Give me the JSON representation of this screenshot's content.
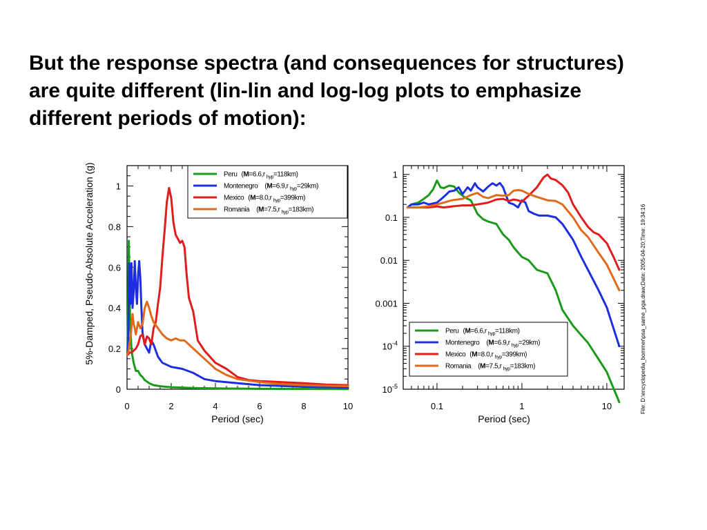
{
  "slide": {
    "title_lines": [
      "But the response spectra (and consequences for structures)",
      "are quite different (lin-lin and log-log plots to emphasize",
      "different periods of motion):"
    ]
  },
  "footnote": "File: D:\\encyclopedia_bommer\\psa_same_pga.draw;Date: 2005-04-20;Time: 19:34:16",
  "colors": {
    "peru": "#1a9a1a",
    "montenegro": "#1c2ee0",
    "mexico": "#e01c1c",
    "romania": "#e06a1a"
  },
  "chart_data": [
    {
      "type": "line",
      "scale": "linear",
      "xlabel": "Period    (sec)",
      "ylabel": "5%-Damped,  Pseudo-Absolute  Acceleration  (g)",
      "xlim": [
        0,
        10
      ],
      "ylim": [
        0,
        1.1
      ],
      "x_ticks": [
        0,
        2,
        4,
        6,
        8,
        10
      ],
      "x_tick_labels": [
        "0",
        "2",
        "4",
        "6",
        "8",
        "10"
      ],
      "y_ticks": [
        0,
        0.2,
        0.4,
        0.6,
        0.8,
        1
      ],
      "y_tick_labels": [
        "0",
        "0.2",
        "0.4",
        "0.6",
        "0.8",
        "1"
      ],
      "legend_position": "top-right",
      "series": [
        {
          "key": "peru",
          "name": "Peru",
          "params": "(M=6.6,r hyp=118km)",
          "legend": {
            "name": "Peru",
            "pre": "(",
            "bold": "M",
            "mid": "=6.6,r",
            "sub": "hyp",
            "post": "=118km)"
          },
          "x": [
            0.02,
            0.05,
            0.08,
            0.1,
            0.12,
            0.15,
            0.18,
            0.2,
            0.22,
            0.25,
            0.3,
            0.35,
            0.4,
            0.5,
            0.6,
            0.7,
            0.8,
            1.0,
            1.2,
            1.5,
            2.0,
            3.0,
            4.0,
            6.0,
            8.0,
            10.0
          ],
          "values": [
            0.18,
            0.42,
            0.73,
            0.6,
            0.45,
            0.3,
            0.24,
            0.2,
            0.18,
            0.16,
            0.13,
            0.11,
            0.09,
            0.09,
            0.07,
            0.06,
            0.045,
            0.03,
            0.02,
            0.015,
            0.01,
            0.006,
            0.004,
            0.002,
            0.0015,
            0.001
          ]
        },
        {
          "key": "montenegro",
          "name": "Montenegro",
          "params": "(M=6.9,r hyp=29km)",
          "legend": {
            "name": "Montenegro",
            "pre": "(",
            "bold": "M",
            "mid": "=6.9,r",
            "sub": "hyp",
            "post": "=29km)"
          },
          "x": [
            0.02,
            0.05,
            0.08,
            0.1,
            0.12,
            0.15,
            0.18,
            0.2,
            0.25,
            0.3,
            0.35,
            0.4,
            0.45,
            0.5,
            0.55,
            0.6,
            0.65,
            0.7,
            0.8,
            0.9,
            1.0,
            1.1,
            1.2,
            1.4,
            1.6,
            1.8,
            2.0,
            2.5,
            3.0,
            3.5,
            4.0,
            5.0,
            6.0,
            8.0,
            10.0
          ],
          "values": [
            0.17,
            0.22,
            0.45,
            0.62,
            0.5,
            0.42,
            0.55,
            0.62,
            0.4,
            0.48,
            0.63,
            0.5,
            0.42,
            0.56,
            0.63,
            0.55,
            0.4,
            0.28,
            0.22,
            0.2,
            0.18,
            0.24,
            0.22,
            0.16,
            0.13,
            0.12,
            0.11,
            0.1,
            0.08,
            0.05,
            0.04,
            0.03,
            0.02,
            0.012,
            0.008
          ]
        },
        {
          "key": "mexico",
          "name": "Mexico",
          "params": "(M=8.0,r hyp=399km)",
          "legend": {
            "name": "Mexico",
            "pre": "(",
            "bold": "M",
            "mid": "=8.0,r",
            "sub": "hyp",
            "post": "=399km)"
          },
          "x": [
            0.02,
            0.05,
            0.1,
            0.2,
            0.3,
            0.4,
            0.5,
            0.6,
            0.7,
            0.8,
            0.9,
            1.0,
            1.1,
            1.2,
            1.3,
            1.4,
            1.5,
            1.6,
            1.7,
            1.8,
            1.9,
            2.0,
            2.1,
            2.2,
            2.3,
            2.4,
            2.5,
            2.6,
            2.7,
            2.8,
            3.0,
            3.2,
            3.5,
            4.0,
            4.5,
            5.0,
            5.5,
            6.0,
            7.0,
            8.0,
            9.0,
            10.0
          ],
          "values": [
            0.17,
            0.17,
            0.18,
            0.18,
            0.19,
            0.2,
            0.22,
            0.26,
            0.27,
            0.22,
            0.26,
            0.25,
            0.22,
            0.3,
            0.33,
            0.42,
            0.5,
            0.65,
            0.78,
            0.92,
            0.99,
            0.94,
            0.82,
            0.76,
            0.74,
            0.72,
            0.73,
            0.7,
            0.56,
            0.45,
            0.38,
            0.24,
            0.19,
            0.13,
            0.1,
            0.06,
            0.045,
            0.04,
            0.035,
            0.03,
            0.023,
            0.02
          ]
        },
        {
          "key": "romania",
          "name": "Romania",
          "params": "(M=7.5,r hyp=183km)",
          "legend": {
            "name": "Romania",
            "pre": "(",
            "bold": "M",
            "mid": "=7.5,r",
            "sub": "hyp",
            "post": "=183km)"
          },
          "x": [
            0.02,
            0.05,
            0.08,
            0.1,
            0.15,
            0.2,
            0.25,
            0.3,
            0.35,
            0.4,
            0.5,
            0.6,
            0.7,
            0.8,
            0.9,
            1.0,
            1.1,
            1.2,
            1.4,
            1.6,
            1.8,
            2.0,
            2.2,
            2.4,
            2.6,
            2.8,
            3.0,
            3.5,
            4.0,
            4.5,
            5.0,
            6.0,
            7.0,
            8.0,
            9.0,
            10.0
          ],
          "values": [
            0.17,
            0.18,
            0.2,
            0.22,
            0.25,
            0.3,
            0.37,
            0.32,
            0.3,
            0.27,
            0.33,
            0.3,
            0.32,
            0.4,
            0.43,
            0.4,
            0.36,
            0.33,
            0.3,
            0.27,
            0.25,
            0.24,
            0.25,
            0.24,
            0.24,
            0.22,
            0.2,
            0.15,
            0.1,
            0.07,
            0.05,
            0.035,
            0.025,
            0.02,
            0.017,
            0.015
          ]
        }
      ]
    },
    {
      "type": "line",
      "scale": "log-log",
      "xlabel": "Period    (sec)",
      "xlim": [
        0.04,
        16
      ],
      "ylim": [
        1e-05,
        1.6
      ],
      "x_ticks": [
        0.1,
        1,
        10
      ],
      "x_tick_labels": [
        "0.1",
        "1",
        "10"
      ],
      "y_ticks": [
        1e-05,
        0.0001,
        0.001,
        0.01,
        0.1,
        1
      ],
      "y_tick_labels": [
        {
          "base": "10",
          "exp": "-5"
        },
        {
          "base": "10",
          "exp": "-4"
        },
        {
          "text": "0.001"
        },
        {
          "text": "0.01"
        },
        {
          "text": "0.1"
        },
        {
          "text": "1"
        }
      ],
      "legend_position": "bottom-center",
      "series": [
        {
          "key": "peru",
          "name": "Peru",
          "params": "(M=6.6,r hyp=118km)",
          "legend": {
            "name": "Peru",
            "pre": "(",
            "bold": "M",
            "mid": "=6.6,r",
            "sub": "hyp",
            "post": "=118km)"
          },
          "x": [
            0.045,
            0.05,
            0.06,
            0.07,
            0.08,
            0.09,
            0.1,
            0.11,
            0.12,
            0.14,
            0.16,
            0.18,
            0.2,
            0.22,
            0.25,
            0.3,
            0.35,
            0.4,
            0.5,
            0.6,
            0.7,
            0.8,
            1.0,
            1.2,
            1.5,
            2.0,
            2.5,
            3.0,
            4.0,
            5.0,
            6.0,
            8.0,
            10.0,
            14.0
          ],
          "values": [
            0.17,
            0.2,
            0.22,
            0.27,
            0.33,
            0.45,
            0.72,
            0.5,
            0.48,
            0.55,
            0.52,
            0.38,
            0.32,
            0.28,
            0.25,
            0.12,
            0.09,
            0.08,
            0.07,
            0.04,
            0.03,
            0.02,
            0.012,
            0.01,
            0.006,
            0.005,
            0.002,
            0.0007,
            0.0003,
            0.00018,
            0.00012,
            5e-05,
            2.5e-05,
            5e-06
          ]
        },
        {
          "key": "montenegro",
          "name": "Montenegro",
          "params": "(M=6.9,r hyp=29km)",
          "legend": {
            "name": "Montenegro",
            "pre": "(",
            "bold": "M",
            "mid": "=6.9,r",
            "sub": "hyp",
            "post": "=29km)"
          },
          "x": [
            0.045,
            0.05,
            0.06,
            0.07,
            0.08,
            0.1,
            0.12,
            0.14,
            0.16,
            0.18,
            0.2,
            0.23,
            0.25,
            0.28,
            0.3,
            0.35,
            0.4,
            0.45,
            0.5,
            0.55,
            0.6,
            0.7,
            0.8,
            0.9,
            1.0,
            1.1,
            1.2,
            1.4,
            1.6,
            2.0,
            2.5,
            3.0,
            4.0,
            5.0,
            6.0,
            8.0,
            10.0,
            14.0
          ],
          "values": [
            0.17,
            0.2,
            0.2,
            0.22,
            0.2,
            0.22,
            0.3,
            0.4,
            0.42,
            0.5,
            0.35,
            0.5,
            0.42,
            0.62,
            0.5,
            0.4,
            0.52,
            0.62,
            0.55,
            0.63,
            0.5,
            0.22,
            0.2,
            0.17,
            0.25,
            0.22,
            0.14,
            0.12,
            0.11,
            0.11,
            0.1,
            0.07,
            0.03,
            0.012,
            0.006,
            0.002,
            0.0008,
            0.0001
          ]
        },
        {
          "key": "mexico",
          "name": "Mexico",
          "params": "(M=8.0,r hyp=399km)",
          "legend": {
            "name": "Mexico",
            "pre": "(",
            "bold": "M",
            "mid": "=8.0,r",
            "sub": "hyp",
            "post": "=399km)"
          },
          "x": [
            0.045,
            0.06,
            0.08,
            0.1,
            0.12,
            0.15,
            0.2,
            0.25,
            0.3,
            0.35,
            0.4,
            0.5,
            0.6,
            0.7,
            0.8,
            0.9,
            1.0,
            1.2,
            1.5,
            1.8,
            2.0,
            2.2,
            2.5,
            3.0,
            3.5,
            4.0,
            5.0,
            6.0,
            7.0,
            8.0,
            10.0,
            12.0,
            14.0
          ],
          "values": [
            0.17,
            0.17,
            0.17,
            0.18,
            0.17,
            0.18,
            0.19,
            0.19,
            0.2,
            0.21,
            0.22,
            0.26,
            0.27,
            0.24,
            0.26,
            0.25,
            0.23,
            0.32,
            0.5,
            0.85,
            0.99,
            0.8,
            0.74,
            0.56,
            0.38,
            0.2,
            0.1,
            0.06,
            0.045,
            0.04,
            0.025,
            0.012,
            0.006
          ]
        },
        {
          "key": "romania",
          "name": "Romania",
          "params": "(M=7.5,r hyp=183km)",
          "legend": {
            "name": "Romania",
            "pre": "(",
            "bold": "M",
            "mid": "=7.5,r",
            "sub": "hyp",
            "post": "=183km)"
          },
          "x": [
            0.045,
            0.06,
            0.08,
            0.1,
            0.12,
            0.15,
            0.2,
            0.25,
            0.3,
            0.35,
            0.4,
            0.5,
            0.6,
            0.7,
            0.8,
            0.9,
            1.0,
            1.2,
            1.5,
            2.0,
            2.5,
            3.0,
            4.0,
            5.0,
            6.0,
            8.0,
            10.0,
            14.0
          ],
          "values": [
            0.17,
            0.17,
            0.18,
            0.2,
            0.22,
            0.25,
            0.27,
            0.33,
            0.37,
            0.3,
            0.28,
            0.33,
            0.32,
            0.33,
            0.42,
            0.43,
            0.42,
            0.35,
            0.3,
            0.25,
            0.24,
            0.2,
            0.1,
            0.05,
            0.035,
            0.015,
            0.008,
            0.002
          ]
        }
      ]
    }
  ]
}
